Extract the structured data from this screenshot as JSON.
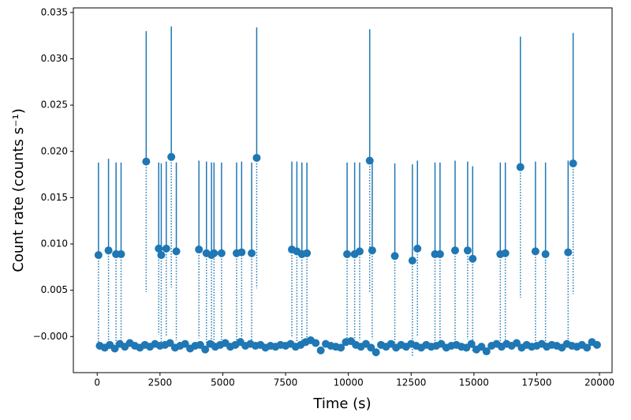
{
  "chart_data": {
    "type": "errorbar",
    "xlabel": "Time (s)",
    "ylabel": "Count rate (counts s⁻¹)",
    "xlim": [
      -950,
      20500
    ],
    "ylim": [
      -0.0039,
      0.0355
    ],
    "xticks": [
      0,
      2500,
      5000,
      7500,
      10000,
      12500,
      15000,
      17500,
      20000
    ],
    "yticks": [
      {
        "value": 0,
        "label": "−0.000"
      },
      0.005,
      {
        "value": 0.01,
        "label": "0.010"
      },
      0.015,
      {
        "value": 0.02,
        "label": "0.020"
      },
      0.025,
      {
        "value": 0.03,
        "label": "0.030"
      },
      0.035
    ],
    "series": [
      {
        "color": "#1f77b4",
        "x": [
          50,
          100,
          300,
          450,
          500,
          700,
          750,
          900,
          950,
          1100,
          1300,
          1500,
          1700,
          1900,
          1950,
          2100,
          2300,
          2450,
          2500,
          2550,
          2700,
          2750,
          2900,
          2950,
          3100,
          3150,
          3300,
          3500,
          3700,
          3900,
          4050,
          4100,
          4300,
          4350,
          4500,
          4550,
          4650,
          4700,
          4900,
          4950,
          5100,
          5300,
          5500,
          5550,
          5700,
          5750,
          5900,
          6100,
          6150,
          6300,
          6350,
          6500,
          6700,
          6900,
          7100,
          7300,
          7500,
          7700,
          7750,
          7900,
          7950,
          8100,
          8150,
          8300,
          8350,
          8500,
          8700,
          8900,
          9100,
          9300,
          9500,
          9700,
          9900,
          9950,
          10100,
          10250,
          10300,
          10450,
          10500,
          10700,
          10850,
          10900,
          10950,
          11100,
          11300,
          11500,
          11700,
          11850,
          11900,
          12100,
          12300,
          12500,
          12550,
          12700,
          12750,
          12900,
          13100,
          13300,
          13450,
          13500,
          13650,
          13700,
          13900,
          14100,
          14250,
          14300,
          14500,
          14700,
          14750,
          14900,
          14950,
          15100,
          15300,
          15500,
          15700,
          15900,
          16050,
          16100,
          16250,
          16300,
          16500,
          16700,
          16850,
          16900,
          17100,
          17300,
          17450,
          17500,
          17700,
          17850,
          17900,
          18100,
          18300,
          18500,
          18700,
          18750,
          18900,
          18950,
          19100,
          19300,
          19500,
          19700,
          19900
        ],
        "values": [
          0.0088,
          -0.001,
          -0.0012,
          0.0093,
          -0.0009,
          -0.0013,
          0.0089,
          -0.0008,
          0.0089,
          -0.0011,
          -0.0007,
          -0.001,
          -0.0012,
          -0.0009,
          0.0189,
          -0.0011,
          -0.0008,
          0.0095,
          -0.001,
          0.0088,
          -0.0009,
          0.0095,
          -0.0007,
          0.0194,
          -0.0012,
          0.0092,
          -0.001,
          -0.0008,
          -0.0013,
          -0.001,
          0.0094,
          -0.0009,
          -0.0014,
          0.009,
          -0.0008,
          0.0088,
          0.009,
          -0.0011,
          -0.0009,
          0.009,
          -0.0007,
          -0.0011,
          -0.0009,
          0.009,
          -0.0006,
          0.0091,
          -0.001,
          -0.0008,
          0.009,
          -0.001,
          0.0193,
          -0.0009,
          -0.0012,
          -0.001,
          -0.0011,
          -0.0009,
          -0.001,
          -0.0008,
          0.0094,
          -0.0011,
          0.0092,
          -0.0009,
          0.0089,
          -0.0006,
          0.009,
          -0.0004,
          -0.0007,
          -0.0015,
          -0.0008,
          -0.001,
          -0.0011,
          -0.0012,
          -0.0006,
          0.0089,
          -0.0005,
          0.0089,
          -0.0009,
          0.0092,
          -0.0011,
          -0.0008,
          0.019,
          -0.0012,
          0.0093,
          -0.0017,
          -0.0009,
          -0.0011,
          -0.0008,
          0.0087,
          -0.0012,
          -0.0009,
          -0.0011,
          -0.0008,
          0.0082,
          -0.001,
          0.0095,
          -0.0012,
          -0.0009,
          -0.0011,
          0.0089,
          -0.001,
          0.0089,
          -0.0008,
          -0.0012,
          -0.001,
          0.0093,
          -0.0009,
          -0.0011,
          -0.0012,
          0.0093,
          -0.0008,
          0.0084,
          -0.0014,
          -0.0011,
          -0.0016,
          -0.001,
          -0.0008,
          0.0089,
          -0.0011,
          0.009,
          -0.0008,
          -0.001,
          -0.0007,
          0.0183,
          -0.0012,
          -0.0009,
          -0.0011,
          0.0092,
          -0.001,
          -0.0008,
          0.0089,
          -0.0011,
          -0.0009,
          -0.001,
          -0.0012,
          -0.0008,
          0.0091,
          -0.001,
          0.0187,
          -0.0011,
          -0.0009,
          -0.0012,
          -0.0006,
          -0.0009
        ],
        "errors": [
          0.01,
          0.0003,
          0.0003,
          0.0099,
          0.0003,
          0.0003,
          0.0099,
          0.0003,
          0.0099,
          0.0003,
          0.0003,
          0.0003,
          0.0003,
          0.0003,
          0.0141,
          0.0003,
          0.0003,
          0.0093,
          0.0003,
          0.0099,
          0.0003,
          0.0094,
          0.0003,
          0.0141,
          0.0003,
          0.0096,
          0.0003,
          0.0003,
          0.0003,
          0.0003,
          0.0096,
          0.0003,
          0.0003,
          0.0099,
          0.0003,
          0.01,
          0.0098,
          0.0003,
          0.0003,
          0.0098,
          0.0003,
          0.0003,
          0.0003,
          0.0098,
          0.0003,
          0.0098,
          0.0003,
          0.0003,
          0.0098,
          0.0003,
          0.0141,
          0.0003,
          0.0003,
          0.0003,
          0.0003,
          0.0003,
          0.0003,
          0.0003,
          0.0095,
          0.0003,
          0.0097,
          0.0003,
          0.0099,
          0.0003,
          0.0098,
          0.0003,
          0.0003,
          0.0003,
          0.0003,
          0.0003,
          0.0003,
          0.0003,
          0.0003,
          0.0099,
          0.0003,
          0.0099,
          0.0003,
          0.0096,
          0.0003,
          0.0003,
          0.0142,
          0.0003,
          0.0096,
          0.0003,
          0.0003,
          0.0003,
          0.0003,
          0.01,
          0.0003,
          0.0003,
          0.0003,
          0.0003,
          0.0104,
          0.0003,
          0.0095,
          0.0003,
          0.0003,
          0.0003,
          0.0099,
          0.0003,
          0.0099,
          0.0003,
          0.0003,
          0.0003,
          0.0097,
          0.0003,
          0.0003,
          0.0003,
          0.0096,
          0.0003,
          0.01,
          0.0003,
          0.0003,
          0.0003,
          0.0003,
          0.0003,
          0.0099,
          0.0003,
          0.0098,
          0.0003,
          0.0003,
          0.0003,
          0.0141,
          0.0003,
          0.0003,
          0.0003,
          0.0097,
          0.0003,
          0.0003,
          0.0099,
          0.0003,
          0.0003,
          0.0003,
          0.0003,
          0.0003,
          0.0099,
          0.0003,
          0.0141,
          0.0003,
          0.0003,
          0.0003,
          0.0003,
          0.0003
        ]
      }
    ]
  }
}
